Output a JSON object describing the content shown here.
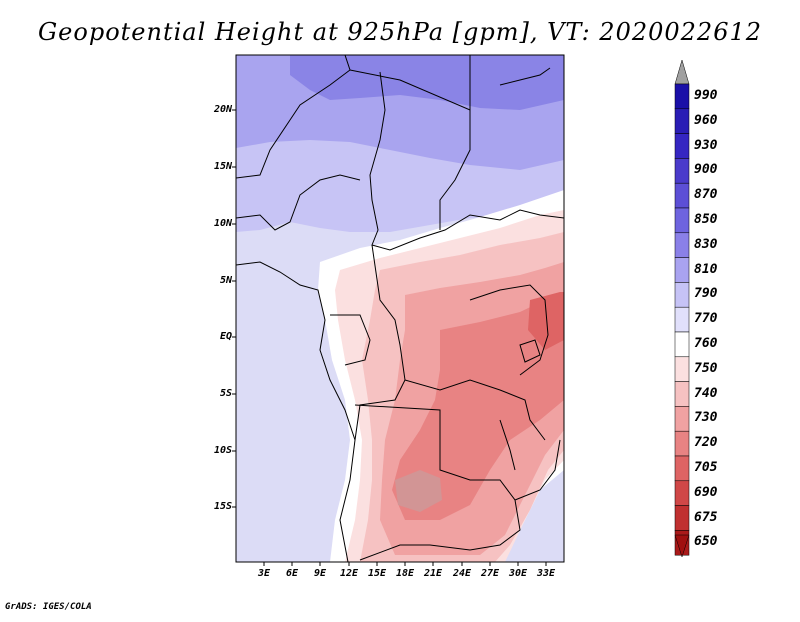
{
  "title": "Geopotential Height at 925hPa [gpm], VT: 2020022612",
  "footer": "GrADS: IGES/COLA",
  "lat_ticks": [
    "20N",
    "15N",
    "10N",
    "5N",
    "EQ",
    "5S",
    "10S",
    "15S"
  ],
  "lon_ticks": [
    "3E",
    "6E",
    "9E",
    "12E",
    "15E",
    "18E",
    "21E",
    "24E",
    "27E",
    "30E",
    "33E"
  ],
  "legend": {
    "levels": [
      "990",
      "960",
      "930",
      "900",
      "870",
      "850",
      "830",
      "810",
      "790",
      "770",
      "760",
      "750",
      "740",
      "730",
      "720",
      "705",
      "690",
      "675",
      "650"
    ],
    "colors": [
      "#1a0fa8",
      "#2a1db5",
      "#3526c2",
      "#4a3bcb",
      "#5c4fd6",
      "#6e64df",
      "#8a80e8",
      "#a9a3f0",
      "#c6c3f6",
      "#e1e0fb",
      "#ffffff",
      "#fbe0e0",
      "#f6c2c2",
      "#f0a2a2",
      "#e88383",
      "#de6464",
      "#d04747",
      "#c03030",
      "#aa1a1a"
    ],
    "top_arrow_color": "#a0a0a0",
    "bottom_arrow_color": "#a01010"
  },
  "map_colors": {
    "water": "#dcdcf6",
    "north_dark": "#8a84e6",
    "north_mid": "#a9a4ef",
    "north_light": "#c7c4f5",
    "white": "#ffffff",
    "pink1": "#fbe0e0",
    "pink2": "#f6c2c2",
    "pink3": "#f0a2a2",
    "pink4": "#e88383",
    "pink5": "#de6464",
    "grey_low": "#d29595"
  }
}
